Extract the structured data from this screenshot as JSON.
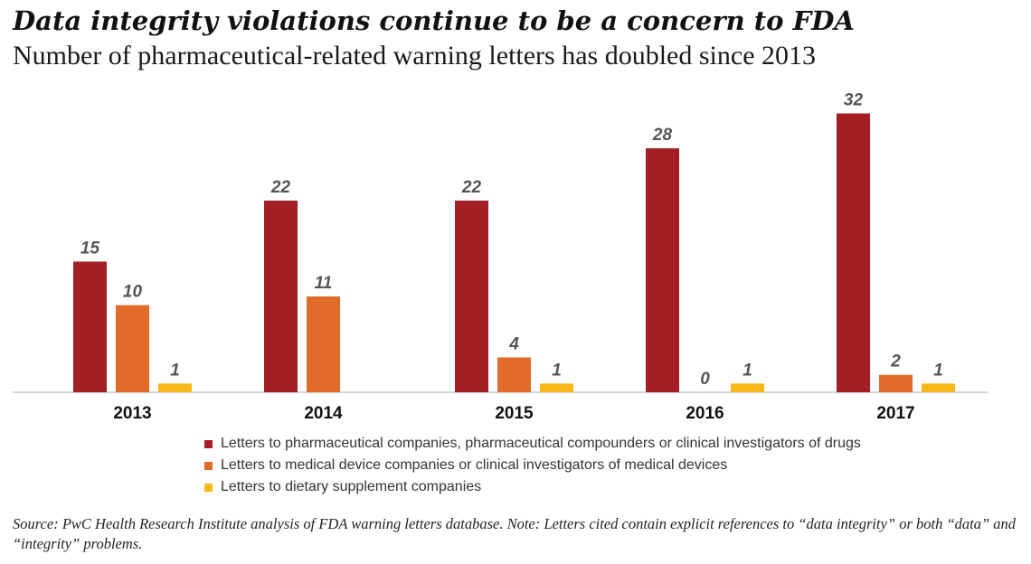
{
  "title": "Data integrity violations continue to be a concern to FDA",
  "subtitle": "Number of pharmaceutical-related warning letters has doubled since 2013",
  "chart_data": {
    "type": "bar",
    "categories": [
      "2013",
      "2014",
      "2015",
      "2016",
      "2017"
    ],
    "series": [
      {
        "name": "Letters to pharmaceutical companies, pharmaceutical compounders or clinical investigators of drugs",
        "color": "#a31f23",
        "values": [
          15,
          22,
          22,
          28,
          32
        ]
      },
      {
        "name": "Letters to medical device companies or clinical investigators of medical devices",
        "color": "#e06b2a",
        "values": [
          10,
          11,
          4,
          0,
          2
        ]
      },
      {
        "name": "Letters to dietary supplement companies",
        "color": "#f7b718",
        "values": [
          1,
          null,
          1,
          1,
          1
        ]
      }
    ],
    "ylim": [
      0,
      32
    ],
    "grid": false,
    "legend_position": "bottom"
  },
  "footnote": "Source: PwC Health Research Institute analysis of FDA warning letters database. Note: Letters cited contain explicit references to “data integrity” or both “data” and “integrity” problems."
}
